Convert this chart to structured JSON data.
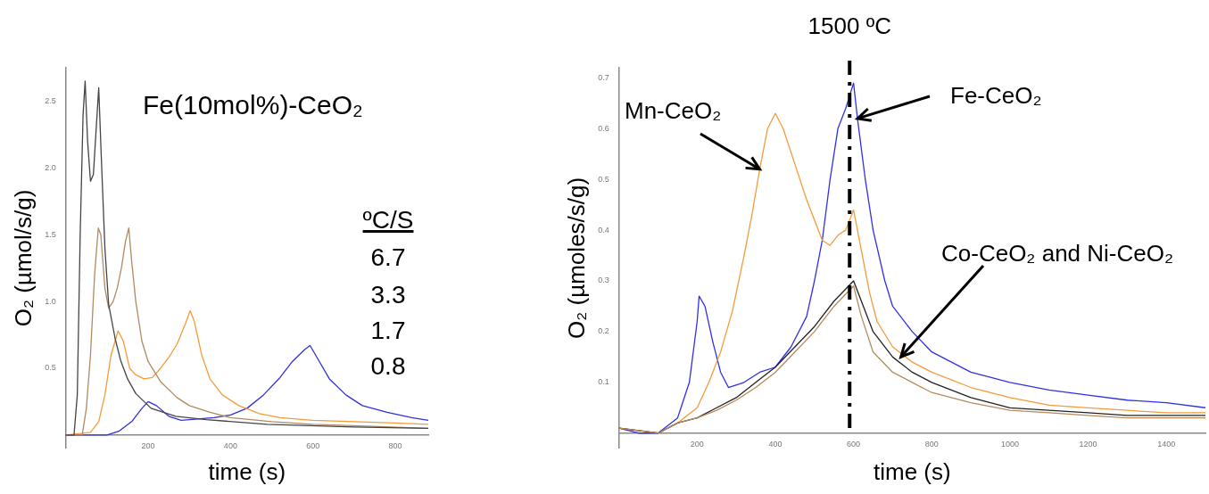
{
  "chart_data": [
    {
      "type": "line",
      "xlabel": "time (s)",
      "ylabel": "O₂ (µmol/s/g)",
      "annotations": [
        "Fe(10mol%)-CeO₂",
        "ºC/S",
        "6.7",
        "3.3",
        "1.7",
        "0.8"
      ],
      "xlim": [
        0,
        880
      ],
      "ylim": [
        -0.1,
        2.75
      ],
      "xticks": [
        200,
        400,
        600,
        800
      ],
      "yticks": [
        {
          "value": 0.5,
          "label": "0.5"
        },
        {
          "value": 1,
          "label": "1.0"
        },
        {
          "value": 1.5,
          "label": "1.5"
        },
        {
          "value": 2,
          "label": "2.0"
        },
        {
          "value": 2.5,
          "label": "2.5"
        }
      ],
      "grid": false,
      "legend": false,
      "series": [
        {
          "color": "#444444",
          "x": [
            0,
            20,
            28,
            35,
            42,
            47,
            53,
            60,
            67,
            74,
            80,
            86,
            95,
            104,
            120,
            133,
            150,
            170,
            207,
            267,
            341,
            489,
            700,
            880
          ],
          "values": [
            0,
            0,
            0.3,
            1.5,
            2.4,
            2.65,
            2.2,
            1.9,
            1.95,
            2.3,
            2.6,
            2.1,
            1.4,
            0.98,
            0.72,
            0.56,
            0.42,
            0.31,
            0.2,
            0.14,
            0.115,
            0.08,
            0.06,
            0.05
          ]
        },
        {
          "color": "#b08a60",
          "x": [
            0,
            40,
            50,
            60,
            70,
            79,
            85,
            95,
            104,
            115,
            125,
            135,
            145,
            153,
            160,
            170,
            185,
            200,
            230,
            270,
            300,
            350,
            400,
            500,
            600,
            700,
            880
          ],
          "values": [
            0,
            0,
            0.2,
            0.6,
            1.2,
            1.55,
            1.5,
            1.1,
            0.95,
            1,
            1.1,
            1.25,
            1.45,
            1.55,
            1.3,
            1,
            0.7,
            0.55,
            0.4,
            0.28,
            0.22,
            0.17,
            0.13,
            0.1,
            0.08,
            0.07,
            0.05
          ]
        },
        {
          "color": "#f59a3a",
          "x": [
            0,
            60,
            80,
            95,
            110,
            127,
            140,
            155,
            170,
            190,
            210,
            230,
            250,
            270,
            290,
            302,
            312,
            330,
            350,
            380,
            420,
            470,
            520,
            600,
            700,
            800,
            880
          ],
          "values": [
            0,
            0.02,
            0.1,
            0.3,
            0.6,
            0.78,
            0.7,
            0.5,
            0.45,
            0.42,
            0.43,
            0.5,
            0.58,
            0.68,
            0.83,
            0.93,
            0.85,
            0.6,
            0.42,
            0.3,
            0.22,
            0.16,
            0.13,
            0.11,
            0.1,
            0.09,
            0.08
          ]
        },
        {
          "color": "#3030e0",
          "x": [
            0,
            100,
            130,
            160,
            185,
            200,
            220,
            250,
            280,
            320,
            360,
            400,
            440,
            480,
            520,
            550,
            580,
            593,
            610,
            640,
            680,
            720,
            780,
            840,
            880
          ],
          "values": [
            0,
            0,
            0.03,
            0.1,
            0.2,
            0.25,
            0.22,
            0.14,
            0.11,
            0.12,
            0.13,
            0.15,
            0.2,
            0.3,
            0.43,
            0.55,
            0.64,
            0.67,
            0.58,
            0.42,
            0.3,
            0.22,
            0.17,
            0.13,
            0.11
          ]
        }
      ]
    },
    {
      "type": "line",
      "xlabel": "time (s)",
      "ylabel": "O₂ (µmoles/s/g)",
      "annotations": [
        {
          "text": "Mn-CeO₂",
          "x": 360,
          "y": 0.52
        },
        {
          "text": "Fe-CeO₂",
          "x": 610,
          "y": 0.62
        },
        {
          "text": "Co-CeO₂ and Ni-CeO₂",
          "x": 721,
          "y": 0.15
        }
      ],
      "xlim": [
        0,
        1500
      ],
      "ylim": [
        -0.03,
        0.72
      ],
      "xticks": [
        200,
        400,
        600,
        800,
        1000,
        1200,
        1400
      ],
      "yticks": [
        0.1,
        0.2,
        0.3,
        0.4,
        0.5,
        0.6,
        0.7
      ],
      "grid": false,
      "legend": false,
      "ref_lines": [
        {
          "axis": "x",
          "value": 590,
          "label": "1500 ºC",
          "color": "#000000",
          "line_style": "dashed"
        }
      ],
      "series": [
        {
          "color": "#b8895a",
          "x": [
            0,
            100,
            150,
            200,
            250,
            300,
            350,
            400,
            450,
            500,
            550,
            600,
            620,
            650,
            700,
            750,
            800,
            900,
            1000,
            1100,
            1200,
            1300,
            1400,
            1500
          ],
          "values": [
            0.01,
            0,
            0.02,
            0.03,
            0.045,
            0.065,
            0.09,
            0.12,
            0.16,
            0.2,
            0.25,
            0.29,
            0.23,
            0.16,
            0.12,
            0.1,
            0.08,
            0.06,
            0.045,
            0.04,
            0.035,
            0.03,
            0.03,
            0.03
          ]
        },
        {
          "color": "#222222",
          "x": [
            0,
            100,
            150,
            200,
            250,
            300,
            350,
            400,
            450,
            500,
            550,
            600,
            620,
            650,
            700,
            750,
            800,
            900,
            1000,
            1100,
            1200,
            1300,
            1400,
            1500
          ],
          "values": [
            0.01,
            0,
            0.02,
            0.03,
            0.05,
            0.07,
            0.1,
            0.13,
            0.17,
            0.21,
            0.26,
            0.3,
            0.26,
            0.2,
            0.15,
            0.12,
            0.1,
            0.07,
            0.05,
            0.045,
            0.04,
            0.035,
            0.035,
            0.035
          ]
        },
        {
          "color": "#f59a3a",
          "x": [
            0,
            100,
            150,
            200,
            230,
            260,
            290,
            320,
            340,
            360,
            380,
            400,
            420,
            450,
            480,
            500,
            520,
            540,
            560,
            580,
            600,
            620,
            640,
            660,
            700,
            750,
            800,
            900,
            1000,
            1100,
            1200,
            1300,
            1400,
            1500
          ],
          "values": [
            0.01,
            0,
            0.02,
            0.05,
            0.1,
            0.16,
            0.24,
            0.35,
            0.43,
            0.52,
            0.6,
            0.63,
            0.6,
            0.53,
            0.46,
            0.42,
            0.38,
            0.37,
            0.39,
            0.4,
            0.44,
            0.36,
            0.28,
            0.22,
            0.17,
            0.14,
            0.12,
            0.09,
            0.07,
            0.055,
            0.05,
            0.045,
            0.04,
            0.04
          ]
        },
        {
          "color": "#3030e8",
          "x": [
            0,
            50,
            100,
            150,
            180,
            200,
            205,
            220,
            240,
            260,
            280,
            320,
            360,
            400,
            440,
            480,
            500,
            520,
            540,
            560,
            580,
            600,
            610,
            630,
            650,
            680,
            700,
            750,
            800,
            900,
            1000,
            1100,
            1200,
            1300,
            1400,
            1500
          ],
          "values": [
            0.01,
            0,
            0,
            0.03,
            0.1,
            0.22,
            0.27,
            0.25,
            0.18,
            0.12,
            0.09,
            0.1,
            0.12,
            0.13,
            0.17,
            0.23,
            0.3,
            0.38,
            0.5,
            0.6,
            0.64,
            0.69,
            0.62,
            0.5,
            0.4,
            0.3,
            0.25,
            0.2,
            0.16,
            0.12,
            0.1,
            0.085,
            0.075,
            0.065,
            0.06,
            0.05
          ]
        }
      ]
    }
  ]
}
